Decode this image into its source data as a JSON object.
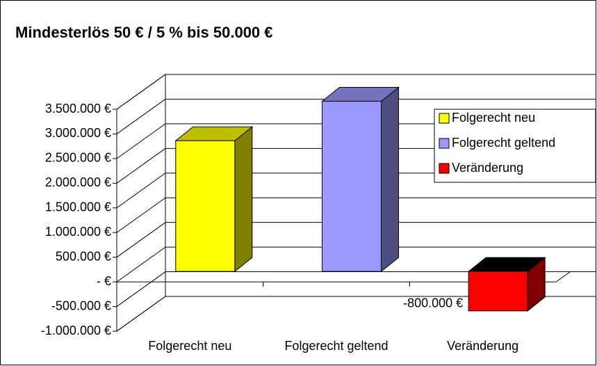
{
  "chart_data": {
    "type": "bar3d",
    "title": "Mindesterlös 50 € / 5 % bis 50.000 €",
    "categories": [
      "Folgerecht neu",
      "Folgerecht geltend",
      "Veränderung"
    ],
    "values": [
      2650000,
      3450000,
      -800000
    ],
    "value_labels": [
      null,
      null,
      "-800.000 €"
    ],
    "colors": [
      "#ffff00",
      "#9999ff",
      "#ff0000"
    ],
    "ylim": [
      -1000000,
      3500000
    ],
    "yticks": [
      {
        "value": -1000000,
        "label": "-1.000.000 €"
      },
      {
        "value": -500000,
        "label": "-500.000 €"
      },
      {
        "value": 0,
        "label": "- €"
      },
      {
        "value": 500000,
        "label": "500.000 €"
      },
      {
        "value": 1000000,
        "label": "1.000.000 €"
      },
      {
        "value": 1500000,
        "label": "1.500.000 €"
      },
      {
        "value": 2000000,
        "label": "2.000.000 €"
      },
      {
        "value": 2500000,
        "label": "2.500.000 €"
      },
      {
        "value": 3000000,
        "label": "3.000.000 €"
      },
      {
        "value": 3500000,
        "label": "3.500.000 €"
      }
    ],
    "grid": true,
    "legend": "right"
  }
}
